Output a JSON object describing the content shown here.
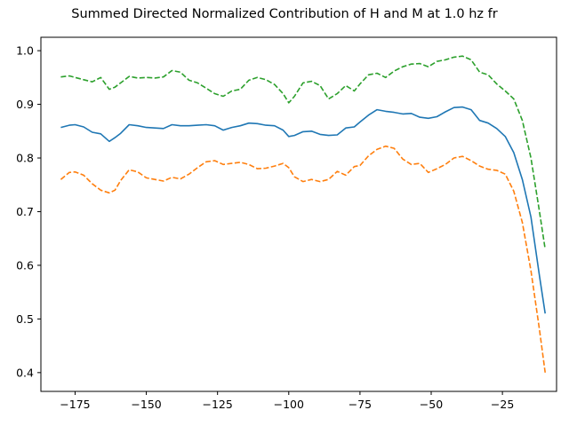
{
  "chart_data": {
    "type": "line",
    "title": "Summed Directed Normalized Contribution of H and M at 1.0 hz fr",
    "xlabel": "",
    "ylabel": "",
    "xlim": [
      -187,
      -6
    ],
    "ylim": [
      0.365,
      1.025
    ],
    "x_ticks": [
      -175,
      -150,
      -125,
      -100,
      -75,
      -50,
      -25
    ],
    "x_tick_labels": [
      "−175",
      "−150",
      "−125",
      "−100",
      "−75",
      "−50",
      "−25"
    ],
    "y_ticks": [
      0.4,
      0.5,
      0.6,
      0.7,
      0.8,
      0.9,
      1.0
    ],
    "y_tick_labels": [
      "0.4",
      "0.5",
      "0.6",
      "0.7",
      "0.8",
      "0.9",
      "1.0"
    ],
    "grid": false,
    "legend": "none",
    "series": [
      {
        "color": "#1f77b4",
        "style": "solid",
        "x": [
          -180,
          -177,
          -175,
          -172,
          -169,
          -166,
          -163,
          -161,
          -159,
          -156,
          -153,
          -150,
          -147,
          -144,
          -141,
          -138,
          -135,
          -132,
          -129,
          -126,
          -123,
          -120,
          -117,
          -114,
          -111,
          -108,
          -105,
          -102,
          -100,
          -98,
          -95,
          -92,
          -89,
          -86,
          -83,
          -80,
          -77,
          -75,
          -72,
          -69,
          -66,
          -63,
          -60,
          -57,
          -54,
          -51,
          -48,
          -45,
          -42,
          -39,
          -36,
          -33,
          -30,
          -27,
          -24,
          -21,
          -18,
          -15,
          -12,
          -10
        ],
        "values": [
          0.857,
          0.861,
          0.862,
          0.858,
          0.848,
          0.845,
          0.831,
          0.838,
          0.846,
          0.862,
          0.86,
          0.857,
          0.856,
          0.855,
          0.862,
          0.86,
          0.86,
          0.861,
          0.862,
          0.86,
          0.852,
          0.857,
          0.86,
          0.865,
          0.864,
          0.861,
          0.86,
          0.852,
          0.84,
          0.842,
          0.849,
          0.85,
          0.844,
          0.842,
          0.843,
          0.856,
          0.858,
          0.867,
          0.88,
          0.89,
          0.887,
          0.885,
          0.882,
          0.883,
          0.876,
          0.874,
          0.877,
          0.886,
          0.894,
          0.895,
          0.89,
          0.87,
          0.865,
          0.855,
          0.84,
          0.81,
          0.76,
          0.69,
          0.58,
          0.51
        ]
      },
      {
        "color": "#ff7f0e",
        "style": "dashed",
        "x": [
          -180,
          -177,
          -175,
          -172,
          -169,
          -166,
          -163,
          -161,
          -159,
          -156,
          -153,
          -150,
          -147,
          -144,
          -141,
          -138,
          -135,
          -132,
          -129,
          -126,
          -123,
          -120,
          -117,
          -114,
          -111,
          -108,
          -105,
          -102,
          -100,
          -98,
          -95,
          -92,
          -89,
          -86,
          -83,
          -80,
          -77,
          -75,
          -72,
          -69,
          -66,
          -63,
          -60,
          -57,
          -54,
          -51,
          -48,
          -45,
          -42,
          -39,
          -36,
          -33,
          -30,
          -27,
          -24,
          -21,
          -18,
          -15,
          -12,
          -10
        ],
        "values": [
          0.76,
          0.773,
          0.774,
          0.768,
          0.752,
          0.74,
          0.735,
          0.74,
          0.758,
          0.778,
          0.774,
          0.763,
          0.76,
          0.757,
          0.764,
          0.761,
          0.77,
          0.782,
          0.793,
          0.795,
          0.788,
          0.79,
          0.792,
          0.788,
          0.78,
          0.781,
          0.785,
          0.79,
          0.782,
          0.765,
          0.756,
          0.76,
          0.756,
          0.76,
          0.775,
          0.768,
          0.784,
          0.786,
          0.804,
          0.816,
          0.822,
          0.818,
          0.798,
          0.788,
          0.79,
          0.773,
          0.78,
          0.788,
          0.8,
          0.803,
          0.795,
          0.785,
          0.779,
          0.777,
          0.77,
          0.738,
          0.68,
          0.59,
          0.48,
          0.4
        ]
      },
      {
        "color": "#2ca02c",
        "style": "dashed",
        "x": [
          -180,
          -177,
          -175,
          -172,
          -169,
          -166,
          -163,
          -161,
          -159,
          -156,
          -153,
          -150,
          -147,
          -144,
          -141,
          -138,
          -135,
          -132,
          -129,
          -126,
          -123,
          -120,
          -117,
          -114,
          -111,
          -108,
          -105,
          -102,
          -100,
          -98,
          -95,
          -92,
          -89,
          -86,
          -83,
          -80,
          -77,
          -75,
          -72,
          -69,
          -66,
          -63,
          -60,
          -57,
          -54,
          -51,
          -48,
          -45,
          -42,
          -39,
          -36,
          -33,
          -30,
          -27,
          -24,
          -21,
          -18,
          -15,
          -12,
          -10
        ],
        "values": [
          0.951,
          0.953,
          0.95,
          0.946,
          0.942,
          0.95,
          0.928,
          0.932,
          0.94,
          0.952,
          0.949,
          0.95,
          0.949,
          0.951,
          0.963,
          0.96,
          0.945,
          0.94,
          0.93,
          0.92,
          0.915,
          0.925,
          0.928,
          0.945,
          0.95,
          0.946,
          0.937,
          0.92,
          0.903,
          0.915,
          0.94,
          0.943,
          0.935,
          0.91,
          0.92,
          0.935,
          0.925,
          0.938,
          0.955,
          0.958,
          0.95,
          0.962,
          0.97,
          0.975,
          0.976,
          0.97,
          0.98,
          0.983,
          0.988,
          0.99,
          0.983,
          0.96,
          0.955,
          0.938,
          0.925,
          0.91,
          0.87,
          0.8,
          0.7,
          0.63
        ]
      }
    ]
  }
}
